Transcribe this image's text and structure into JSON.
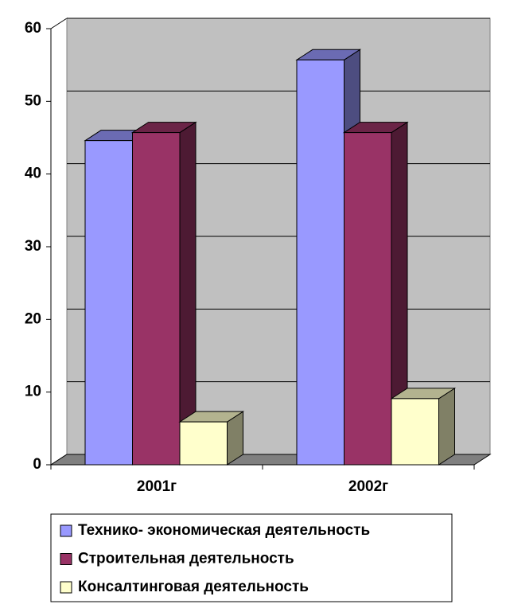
{
  "chart_data": {
    "type": "bar3d",
    "categories": [
      "2001г",
      "2002г"
    ],
    "series": [
      {
        "name": "Технико- экономическая деятельность",
        "color": "#9999ff",
        "values": [
          44.6,
          55.7
        ]
      },
      {
        "name": "Строительная деятельность",
        "color": "#993366",
        "values": [
          45.7,
          45.7
        ]
      },
      {
        "name": "Консалтинговая деятельность",
        "color": "#ffffcc",
        "values": [
          5.9,
          9.1
        ]
      }
    ],
    "ylim": [
      0,
      60
    ],
    "yticks": [
      0,
      10,
      20,
      30,
      40,
      50,
      60
    ],
    "grid": true,
    "legend": "bottom"
  }
}
